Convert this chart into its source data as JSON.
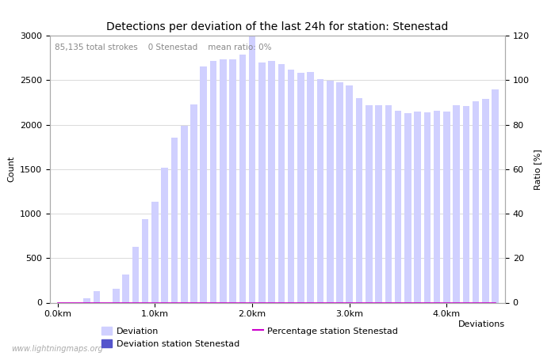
{
  "title": "Detections per deviation of the last 24h for station: Stenestad",
  "annotation_parts": [
    "85,135 total strokes",
    "0 Stenestad",
    "mean ratio: 0%"
  ],
  "xlabel": "Deviations",
  "ylabel_left": "Count",
  "ylabel_right": "Ratio [%]",
  "ylim_left": [
    0,
    3000
  ],
  "ylim_right": [
    0,
    120
  ],
  "yticks_left": [
    0,
    500,
    1000,
    1500,
    2000,
    2500,
    3000
  ],
  "yticks_right": [
    0,
    20,
    40,
    60,
    80,
    100,
    120
  ],
  "bar_width": 0.07,
  "deviations": [
    0.0,
    0.1,
    0.2,
    0.3,
    0.4,
    0.5,
    0.6,
    0.7,
    0.8,
    0.9,
    1.0,
    1.1,
    1.2,
    1.3,
    1.4,
    1.5,
    1.6,
    1.7,
    1.8,
    1.9,
    2.0,
    2.1,
    2.2,
    2.3,
    2.4,
    2.5,
    2.6,
    2.7,
    2.8,
    2.9,
    3.0,
    3.1,
    3.2,
    3.3,
    3.4,
    3.5,
    3.6,
    3.7,
    3.8,
    3.9,
    4.0,
    4.1,
    4.2,
    4.3,
    4.4,
    4.5
  ],
  "counts_total": [
    0,
    0,
    0,
    50,
    130,
    0,
    160,
    320,
    630,
    940,
    1130,
    1520,
    1850,
    1990,
    2230,
    2650,
    2720,
    2730,
    2730,
    2790,
    3060,
    2700,
    2720,
    2680,
    2620,
    2580,
    2590,
    2510,
    2490,
    2480,
    2440,
    2300,
    2220,
    2220,
    2220,
    2160,
    2130,
    2150,
    2140,
    2160,
    2150,
    2220,
    2210,
    2260,
    2290,
    2400
  ],
  "counts_station": [
    0,
    0,
    0,
    0,
    0,
    0,
    0,
    0,
    0,
    0,
    0,
    0,
    0,
    0,
    0,
    0,
    0,
    0,
    0,
    0,
    0,
    0,
    0,
    0,
    0,
    0,
    0,
    0,
    0,
    0,
    0,
    0,
    0,
    0,
    0,
    0,
    0,
    0,
    0,
    0,
    0,
    0,
    0,
    0,
    0,
    0
  ],
  "ratio_station": [
    0,
    0,
    0,
    0,
    0,
    0,
    0,
    0,
    0,
    0,
    0,
    0,
    0,
    0,
    0,
    0,
    0,
    0,
    0,
    0,
    0,
    0,
    0,
    0,
    0,
    0,
    0,
    0,
    0,
    0,
    0,
    0,
    0,
    0,
    0,
    0,
    0,
    0,
    0,
    0,
    0,
    0,
    0,
    0,
    0,
    0
  ],
  "color_total": "#d0d0ff",
  "color_station": "#5555cc",
  "color_ratio": "#cc00cc",
  "color_grid": "#cccccc",
  "color_annotation": "#888888",
  "xtick_labels": [
    "0.0km",
    "1.0km",
    "2.0km",
    "3.0km",
    "4.0km"
  ],
  "xtick_positions": [
    0.0,
    1.0,
    2.0,
    3.0,
    4.0
  ],
  "watermark": "www.lightningmaps.org",
  "title_fontsize": 10,
  "axis_fontsize": 8,
  "tick_fontsize": 8,
  "annotation_fontsize": 7.5
}
